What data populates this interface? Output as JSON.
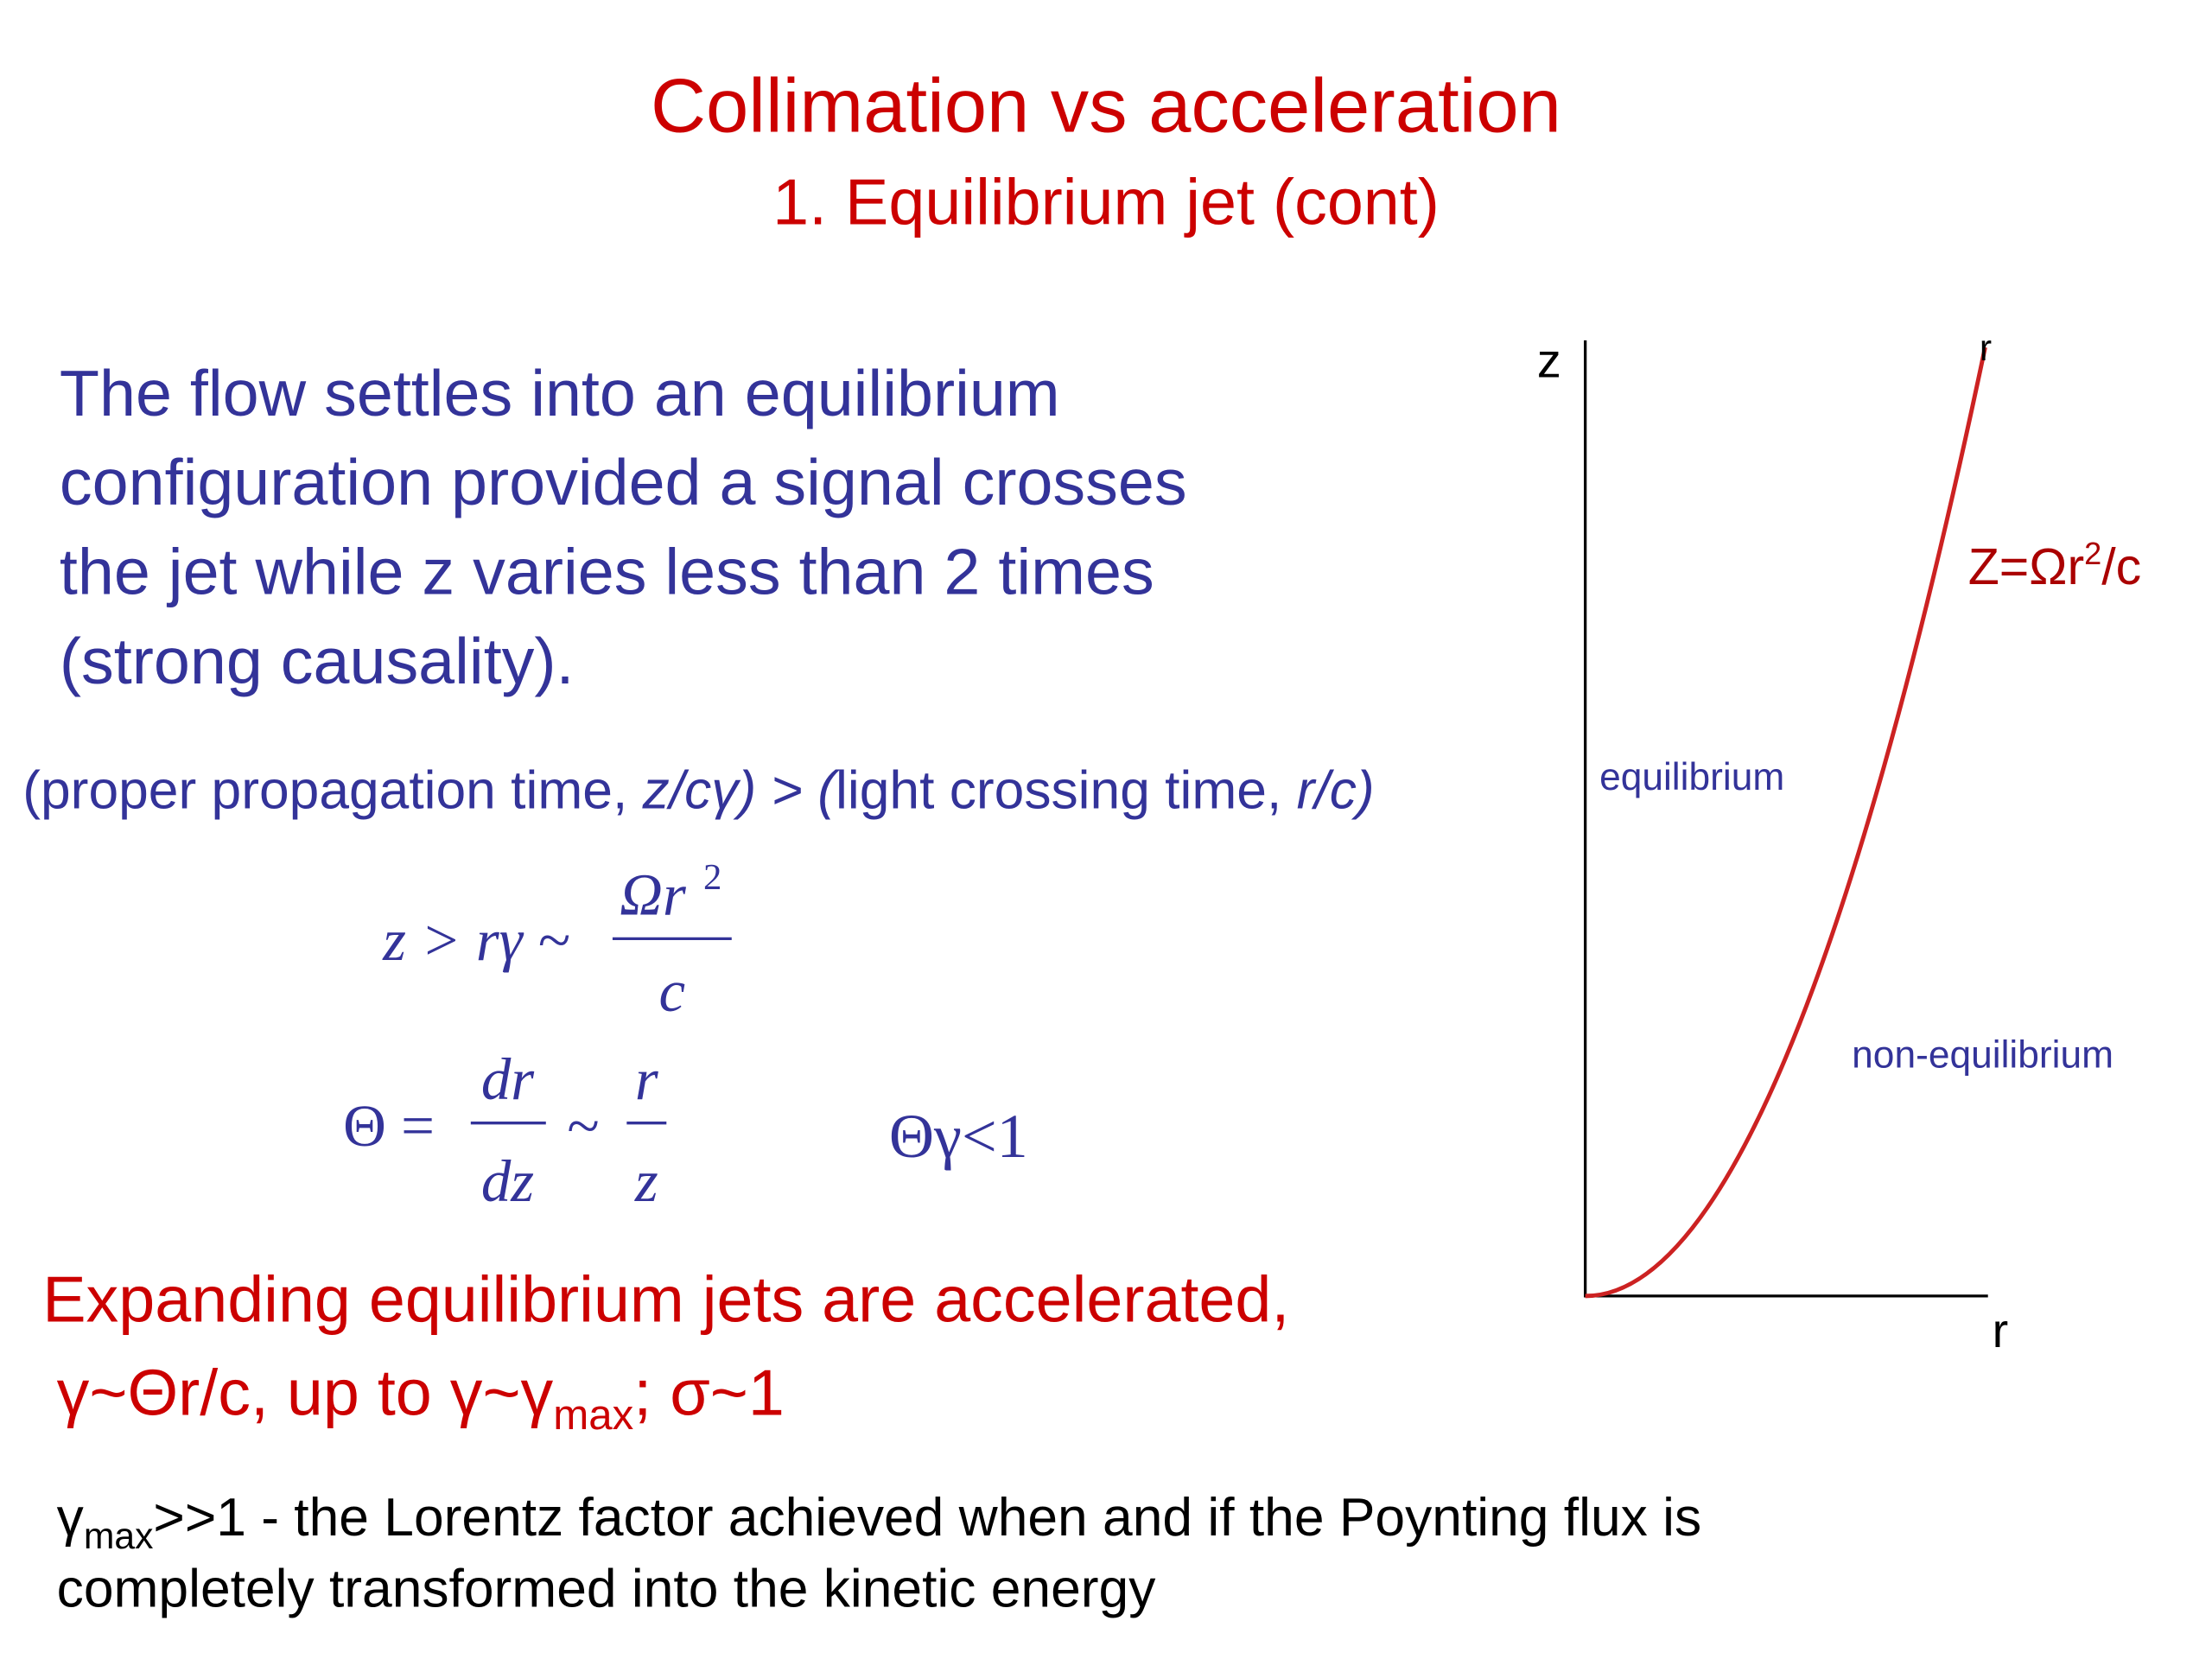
{
  "header": {
    "title": "Collimation vs acceleration",
    "subtitle": "1. Equilibrium jet (cont)"
  },
  "paragraph": {
    "lines": [
      "The flow settles into an equilibrium",
      "configuration provided a signal crosses",
      "the jet while z varies less than 2 times",
      "(strong causality)."
    ]
  },
  "condition": {
    "parts": [
      "(proper propagation time, ",
      "z/cγ) > (",
      "light crossing time, ",
      "r/c)"
    ]
  },
  "equation_1": {
    "lhs": "z > rγ ~",
    "numerator": "Ωr",
    "exponent": "2",
    "denominator": "c"
  },
  "equation_2": {
    "lhs": "Θ =",
    "numerator_1": "dr",
    "denominator_1": "dz",
    "tilde": "~",
    "numerator_2": "r",
    "denominator_2": "z",
    "condition": "Θγ<1"
  },
  "conclusion": {
    "line_1": "Expanding equilibrium jets are accelerated,",
    "line_2_parts": [
      "γ~Θr/c,  up to γ~γ",
      "max",
      "; σ~1"
    ]
  },
  "footnote": {
    "line_1_parts": [
      "γ",
      "max",
      ">>1 -  the Lorentz factor achieved when and if the Poynting flux is"
    ],
    "line_2": "completely transformed into the kinetic energy"
  },
  "diagram": {
    "z_axis_label": "z",
    "r_top_label": "r",
    "r_axis_label": "r",
    "curve_label_parts": [
      "Z=Ωr",
      "2",
      "/c"
    ],
    "upper_region": "equilibrium",
    "lower_region": "non-equilibrium"
  }
}
